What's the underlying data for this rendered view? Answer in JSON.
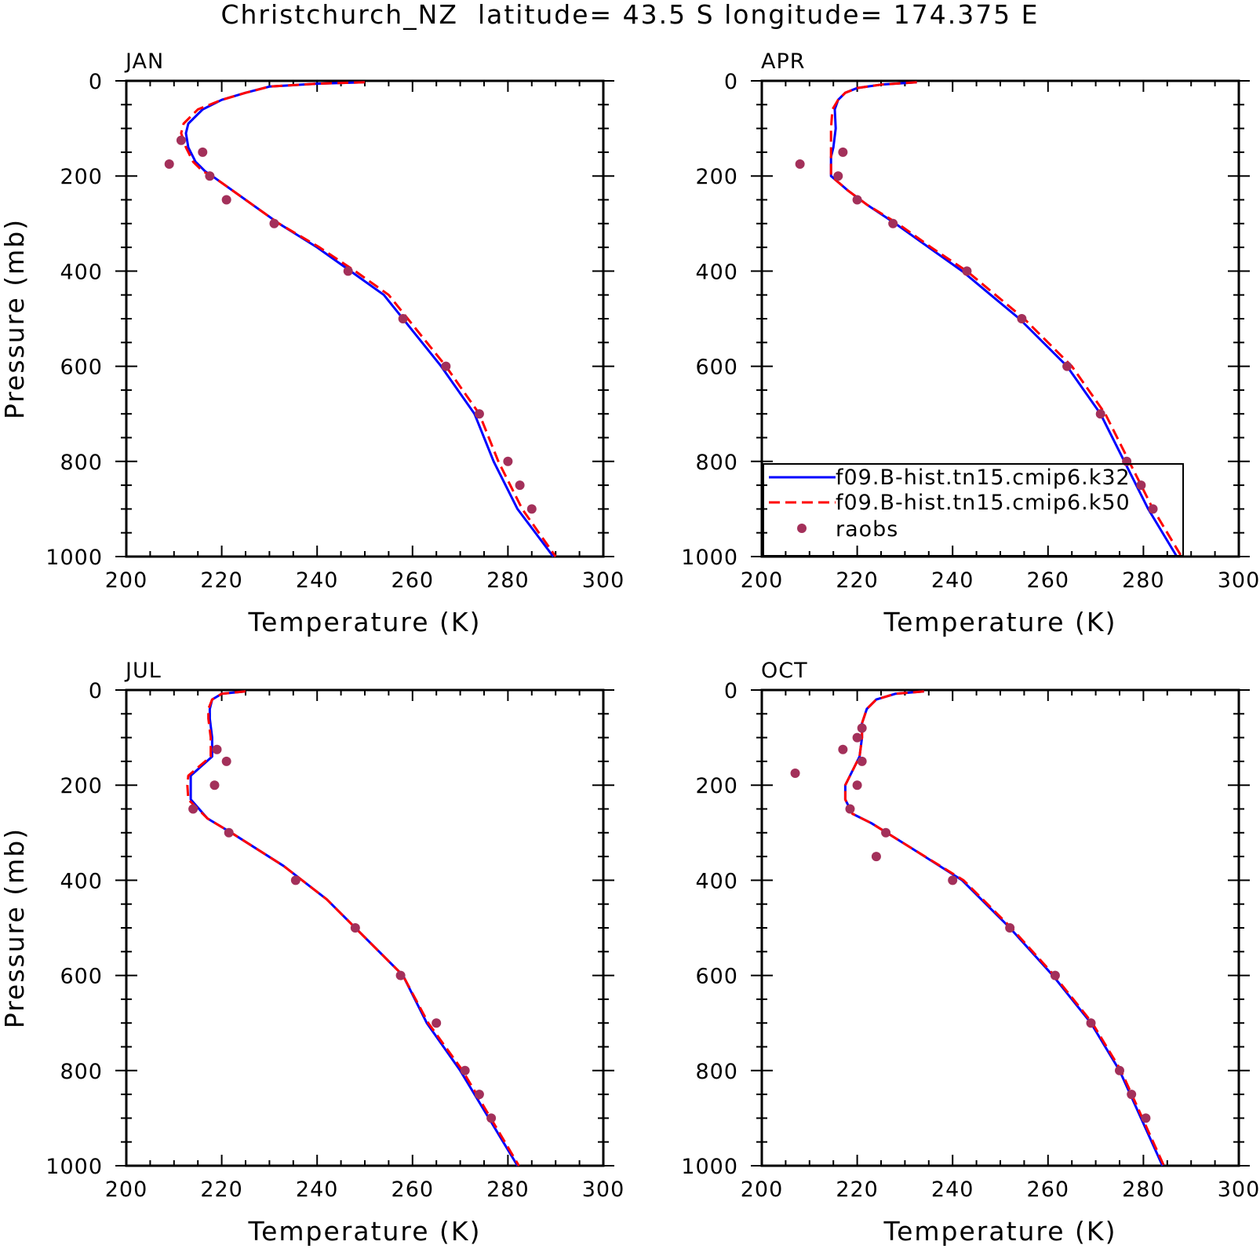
{
  "chart_data": {
    "type": "line",
    "title": "Christchurch_NZ  latitude= 43.5 S longitude= 174.375 E",
    "xlabel": "Temperature (K)",
    "ylabel": "Pressure (mb)",
    "xlim": [
      200,
      300
    ],
    "ylim": [
      1000,
      0
    ],
    "x_ticks": [
      "200",
      "220",
      "240",
      "260",
      "280",
      "300"
    ],
    "y_ticks": [
      "0",
      "200",
      "400",
      "600",
      "800",
      "1000"
    ],
    "legend": {
      "location": "inside APR panel, lower-left",
      "entries": [
        "f09.B-hist.tn15.cmip6.k32",
        "f09.B-hist.tn15.cmip6.k50",
        "raobs"
      ]
    },
    "style": {
      "k32_color": "#0000ff",
      "k50_color": "#ff0000",
      "raobs_color": "#a3305a",
      "k32_line": "solid",
      "k50_line": "dashed",
      "raobs_marker": "filled-circle"
    },
    "panels": [
      {
        "label": "JAN",
        "series": [
          {
            "name": "f09.B-hist.tn15.cmip6.k32",
            "x": [
              250,
              240,
              230,
              225,
              220,
              216,
              213,
              212.5,
              213,
              214.5,
              216.5,
              218,
              225,
              232,
              240,
              247,
              254,
              260,
              266,
              273,
              277,
              282,
              289.5
            ],
            "y": [
              3,
              6,
              12,
              25,
              40,
              60,
              90,
              110,
              140,
              170,
              190,
              200,
              250,
              300,
              350,
              400,
              450,
              525,
              600,
              700,
              800,
              900,
              1000
            ]
          },
          {
            "name": "f09.B-hist.tn15.cmip6.k50",
            "x": [
              250,
              240,
              230,
              225,
              220,
              215,
              212,
              211.5,
              212.5,
              214,
              216,
              218,
              225,
              232,
              240.5,
              248,
              255,
              261,
              267,
              274,
              278,
              283,
              290
            ],
            "y": [
              3,
              6,
              12,
              25,
              40,
              60,
              90,
              110,
              140,
              170,
              190,
              200,
              250,
              300,
              350,
              400,
              450,
              525,
              600,
              700,
              800,
              900,
              1000
            ]
          },
          {
            "name": "raobs",
            "x": [
              211.5,
              216,
              209,
              217.5,
              221,
              231,
              246.5,
              258,
              267,
              274,
              280,
              282.5,
              285
            ],
            "y": [
              125,
              150,
              175,
              200,
              250,
              300,
              400,
              500,
              600,
              700,
              800,
              850,
              900
            ]
          }
        ]
      },
      {
        "label": "APR",
        "series": [
          {
            "name": "f09.B-hist.tn15.cmip6.k32",
            "x": [
              232.5,
              225,
              220,
              217.5,
              216,
              215.3,
              215.5,
              215,
              214.5,
              214.5,
              218,
              222,
              228,
              235,
              242,
              248,
              254,
              264,
              271,
              276,
              281,
              287
            ],
            "y": [
              3,
              8,
              15,
              25,
              40,
              60,
              100,
              140,
              160,
              200,
              230,
              260,
              300,
              350,
              400,
              450,
              500,
              600,
              700,
              800,
              900,
              1000
            ]
          },
          {
            "name": "f09.B-hist.tn15.cmip6.k50",
            "x": [
              232.5,
              225,
              220,
              217.5,
              216,
              214.8,
              214.5,
              214.5,
              214.5,
              214.5,
              218,
              222,
              228.5,
              235.5,
              243,
              249,
              255,
              265,
              272,
              277,
              282,
              288
            ],
            "y": [
              3,
              8,
              15,
              25,
              40,
              60,
              100,
              140,
              160,
              200,
              230,
              260,
              300,
              350,
              400,
              450,
              500,
              600,
              700,
              800,
              900,
              1000
            ]
          },
          {
            "name": "raobs",
            "x": [
              217,
              208,
              216,
              220,
              227.5,
              243,
              254.5,
              264,
              271,
              276.5,
              279.5,
              282
            ],
            "y": [
              150,
              175,
              200,
              250,
              300,
              400,
              500,
              600,
              700,
              800,
              850,
              900
            ]
          }
        ]
      },
      {
        "label": "JUL",
        "series": [
          {
            "name": "f09.B-hist.tn15.cmip6.k32",
            "x": [
              225,
              220,
              218,
              217.5,
              217.5,
              218,
              218,
              213.5,
              213.5,
              213.5,
              217,
              222,
              233,
              242,
              250,
              258,
              263,
              270,
              282
            ],
            "y": [
              3,
              8,
              20,
              40,
              60,
              100,
              140,
              180,
              200,
              230,
              270,
              300,
              370,
              440,
              520,
              600,
              700,
              800,
              1000
            ]
          },
          {
            "name": "f09.B-hist.tn15.cmip6.k50",
            "x": [
              225,
              220,
              218,
              217.2,
              217.2,
              217.7,
              217.7,
              213,
              212.8,
              213,
              217,
              222,
              233,
              242,
              250,
              258,
              263.3,
              270.5,
              282.3
            ],
            "y": [
              3,
              8,
              20,
              40,
              60,
              100,
              140,
              180,
              200,
              230,
              270,
              300,
              370,
              440,
              520,
              600,
              700,
              800,
              1000
            ]
          },
          {
            "name": "raobs",
            "x": [
              219,
              221,
              218.5,
              214,
              221.5,
              235.5,
              248,
              257.5,
              265,
              271,
              274,
              276.5
            ],
            "y": [
              125,
              150,
              200,
              250,
              300,
              400,
              500,
              600,
              700,
              800,
              850,
              900
            ]
          }
        ]
      },
      {
        "label": "OCT",
        "series": [
          {
            "name": "f09.B-hist.tn15.cmip6.k32",
            "x": [
              234,
              228,
              224,
              222,
              221,
              221,
              220.5,
              219,
              217.5,
              217.5,
              219,
              223,
              231,
              242,
              252,
              261,
              269,
              275,
              284
            ],
            "y": [
              3,
              8,
              20,
              40,
              70,
              100,
              140,
              170,
              200,
              230,
              260,
              280,
              330,
              400,
              500,
              600,
              700,
              800,
              1000
            ]
          },
          {
            "name": "f09.B-hist.tn15.cmip6.k50",
            "x": [
              234,
              228,
              224,
              222,
              221,
              221,
              220.5,
              219,
              217.5,
              217.5,
              219,
              223,
              231,
              242.3,
              252.3,
              261.3,
              269.3,
              275.3,
              284.3
            ],
            "y": [
              3,
              8,
              20,
              40,
              70,
              100,
              140,
              170,
              200,
              230,
              260,
              280,
              330,
              400,
              500,
              600,
              700,
              800,
              1000
            ]
          },
          {
            "name": "raobs",
            "x": [
              221,
              220,
              217,
              221,
              207,
              220,
              218.5,
              226,
              224,
              240,
              252,
              261.5,
              269,
              275,
              277.5,
              280.5
            ],
            "y": [
              80,
              100,
              125,
              150,
              175,
              200,
              250,
              300,
              350,
              400,
              500,
              600,
              700,
              800,
              850,
              900
            ]
          }
        ]
      }
    ]
  }
}
